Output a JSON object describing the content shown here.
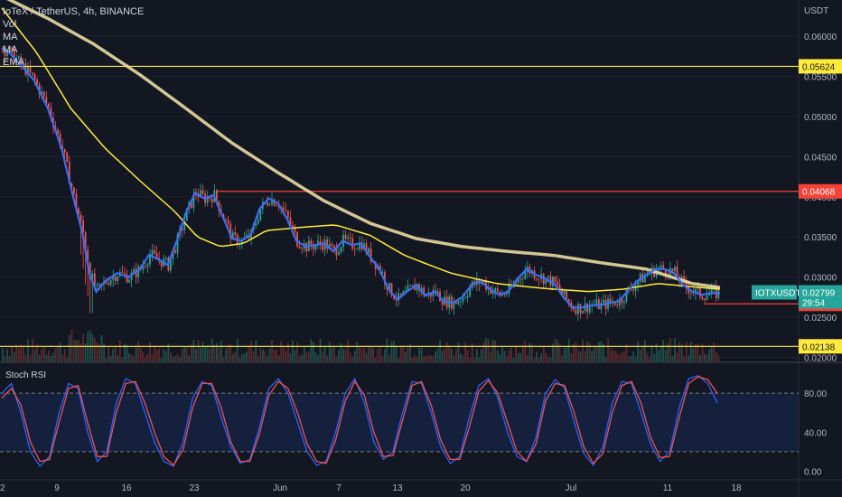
{
  "header": {
    "title": "IoTeX / TetherUS, 4h, BINANCE",
    "indicators": [
      "Vol",
      "MA",
      "MA",
      "EMA"
    ],
    "currency": "USDT"
  },
  "chart_data": [
    {
      "type": "candlestick",
      "symbol_badge": "IOTXUSDT",
      "price_badge": "0.02799",
      "countdown": "29:54",
      "y_ticks": [
        "0.06000",
        "0.05500",
        "0.05000",
        "0.04500",
        "0.04000",
        "0.03500",
        "0.03000",
        "0.02500",
        "0.02000"
      ],
      "x_ticks": [
        "2",
        "9",
        "16",
        "23",
        "Jun",
        "7",
        "13",
        "20",
        "Jul",
        "11",
        "18"
      ],
      "ylim": [
        0.0195,
        0.0645
      ],
      "hlines": [
        {
          "value": 0.05624,
          "label": "0.05624",
          "color": "#ffeb3b"
        },
        {
          "value": 0.04068,
          "label": "0.04068",
          "color": "#f44336"
        },
        {
          "value": 0.02667,
          "label": "0.02667",
          "color": "#f44336"
        },
        {
          "value": 0.02138,
          "label": "0.02138",
          "color": "#ffeb3b"
        }
      ],
      "price_path": [
        [
          0,
          0.0585
        ],
        [
          3,
          0.058
        ],
        [
          8,
          0.0565
        ],
        [
          14,
          0.0545
        ],
        [
          20,
          0.051
        ],
        [
          26,
          0.046
        ],
        [
          31,
          0.04
        ],
        [
          35,
          0.0355
        ],
        [
          38,
          0.0305
        ],
        [
          41,
          0.0282
        ],
        [
          45,
          0.0295
        ],
        [
          50,
          0.0305
        ],
        [
          55,
          0.03
        ],
        [
          60,
          0.031
        ],
        [
          64,
          0.0328
        ],
        [
          68,
          0.0322
        ],
        [
          72,
          0.0315
        ],
        [
          76,
          0.0345
        ],
        [
          80,
          0.038
        ],
        [
          84,
          0.0405
        ],
        [
          88,
          0.0398
        ],
        [
          92,
          0.0402
        ],
        [
          96,
          0.0375
        ],
        [
          100,
          0.0348
        ],
        [
          104,
          0.0345
        ],
        [
          108,
          0.0352
        ],
        [
          112,
          0.0385
        ],
        [
          116,
          0.0398
        ],
        [
          120,
          0.0392
        ],
        [
          124,
          0.0372
        ],
        [
          128,
          0.0345
        ],
        [
          132,
          0.0338
        ],
        [
          136,
          0.034
        ],
        [
          140,
          0.0342
        ],
        [
          144,
          0.0332
        ],
        [
          148,
          0.0345
        ],
        [
          152,
          0.034
        ],
        [
          156,
          0.0342
        ],
        [
          160,
          0.0325
        ],
        [
          164,
          0.031
        ],
        [
          168,
          0.0285
        ],
        [
          172,
          0.0272
        ],
        [
          176,
          0.0282
        ],
        [
          180,
          0.029
        ],
        [
          184,
          0.0277
        ],
        [
          188,
          0.0282
        ],
        [
          192,
          0.027
        ],
        [
          196,
          0.0268
        ],
        [
          200,
          0.0275
        ],
        [
          204,
          0.029
        ],
        [
          208,
          0.0295
        ],
        [
          212,
          0.0285
        ],
        [
          216,
          0.0278
        ],
        [
          220,
          0.0282
        ],
        [
          224,
          0.0298
        ],
        [
          228,
          0.031
        ],
        [
          232,
          0.0303
        ],
        [
          236,
          0.0298
        ],
        [
          240,
          0.0292
        ],
        [
          244,
          0.0275
        ],
        [
          248,
          0.0262
        ],
        [
          252,
          0.0262
        ],
        [
          256,
          0.0265
        ],
        [
          260,
          0.0265
        ],
        [
          264,
          0.0268
        ],
        [
          268,
          0.027
        ],
        [
          272,
          0.0283
        ],
        [
          276,
          0.0295
        ],
        [
          280,
          0.0303
        ],
        [
          284,
          0.031
        ],
        [
          288,
          0.031
        ],
        [
          292,
          0.0305
        ],
        [
          296,
          0.029
        ],
        [
          300,
          0.0282
        ],
        [
          304,
          0.0278
        ],
        [
          308,
          0.028
        ],
        [
          312,
          0.028
        ]
      ],
      "ma_slow_path": [
        [
          0,
          0.065
        ],
        [
          20,
          0.0622
        ],
        [
          40,
          0.059
        ],
        [
          60,
          0.0552
        ],
        [
          80,
          0.051
        ],
        [
          100,
          0.0467
        ],
        [
          120,
          0.043
        ],
        [
          140,
          0.0395
        ],
        [
          160,
          0.0367
        ],
        [
          180,
          0.0348
        ],
        [
          200,
          0.0338
        ],
        [
          220,
          0.0332
        ],
        [
          240,
          0.0327
        ],
        [
          260,
          0.0318
        ],
        [
          280,
          0.031
        ],
        [
          300,
          0.0292
        ],
        [
          312,
          0.0287
        ]
      ],
      "ma_fast_path": [
        [
          0,
          0.0635
        ],
        [
          15,
          0.058
        ],
        [
          30,
          0.051
        ],
        [
          45,
          0.046
        ],
        [
          60,
          0.042
        ],
        [
          75,
          0.0382
        ],
        [
          85,
          0.035
        ],
        [
          95,
          0.0338
        ],
        [
          105,
          0.0342
        ],
        [
          115,
          0.0358
        ],
        [
          130,
          0.0362
        ],
        [
          145,
          0.0365
        ],
        [
          160,
          0.0352
        ],
        [
          175,
          0.0327
        ],
        [
          195,
          0.0305
        ],
        [
          215,
          0.0292
        ],
        [
          235,
          0.0286
        ],
        [
          255,
          0.0282
        ],
        [
          270,
          0.0285
        ],
        [
          285,
          0.0292
        ],
        [
          300,
          0.0288
        ],
        [
          312,
          0.0285
        ]
      ],
      "x_count": 312
    },
    {
      "type": "line",
      "title": "Stoch RSI",
      "y_ticks": [
        "80.00",
        "40.00",
        "0.00"
      ],
      "ylim": [
        -8,
        108
      ],
      "bands": [
        20,
        80
      ],
      "series": [
        {
          "values": [
            80,
            90,
            60,
            20,
            5,
            15,
            60,
            90,
            85,
            40,
            10,
            20,
            70,
            95,
            90,
            60,
            30,
            10,
            5,
            30,
            75,
            92,
            88,
            55,
            25,
            8,
            12,
            45,
            85,
            95,
            80,
            50,
            20,
            6,
            10,
            40,
            80,
            95,
            70,
            30,
            12,
            20,
            60,
            92,
            90,
            60,
            25,
            8,
            15,
            55,
            88,
            95,
            75,
            40,
            15,
            10,
            35,
            80,
            94,
            85,
            50,
            18,
            6,
            25,
            70,
            92,
            90,
            60,
            28,
            10,
            20,
            65,
            95,
            98,
            90,
            70
          ]
        },
        {
          "values": [
            75,
            85,
            68,
            30,
            10,
            12,
            50,
            85,
            88,
            50,
            15,
            15,
            60,
            90,
            92,
            70,
            40,
            15,
            6,
            22,
            65,
            90,
            90,
            65,
            30,
            10,
            10,
            38,
            78,
            92,
            85,
            60,
            28,
            10,
            8,
            32,
            72,
            92,
            78,
            40,
            15,
            16,
            52,
            88,
            92,
            68,
            32,
            12,
            12,
            45,
            82,
            93,
            80,
            50,
            20,
            10,
            28,
            72,
            90,
            88,
            60,
            25,
            8,
            18,
            60,
            88,
            92,
            70,
            35,
            14,
            15,
            55,
            90,
            97,
            94,
            80
          ]
        }
      ]
    }
  ],
  "colors": {
    "background": "#131722",
    "up": "#26a69a",
    "down": "#ef5350",
    "ema": "#3d6df0",
    "ma_slow": "#f5e6a8",
    "ma_fast": "#ffeb3b",
    "stoch_k": "#2962ff",
    "stoch_d": "#ef5350"
  }
}
